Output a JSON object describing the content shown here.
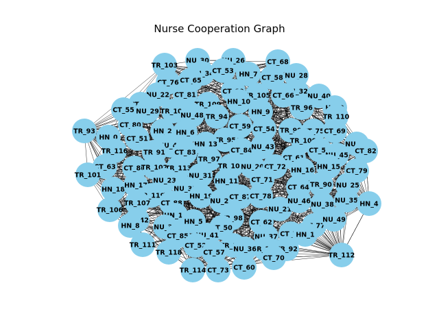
{
  "title": "Nurse Cooperation Graph",
  "colors": {
    "node": "#87ceeb",
    "edge": "#000000",
    "background": "#ffffff"
  },
  "graph": {
    "nodes": [
      "TR_103",
      "NU_30",
      "NU_26",
      "CT_68",
      "NU_34",
      "CT_53",
      "HN_7",
      "CT_58",
      "NU_28",
      "CT_76",
      "CT_65",
      "NU_32",
      "NU_40",
      "CT_89",
      "TR_105",
      "CT_66",
      "NU_22",
      "CT_81",
      "HN_10",
      "HN_3",
      "CT_67",
      "TR_109",
      "HN_9",
      "TR_96",
      "CT_55",
      "NU_29",
      "TR_108",
      "TR_110",
      "NU_48",
      "TR_94",
      "CT_80",
      "CT_59",
      "CT_54",
      "TR_99",
      "CT_75",
      "CT_69",
      "HN_2",
      "HN_6",
      "TR_93",
      "HN_0",
      "TR_95",
      "TR_100",
      "CT_51",
      "NU_44",
      "HN_13",
      "CT_84",
      "NU_43",
      "NU_47",
      "TR_116",
      "TR_91",
      "CT_83",
      "CT_61",
      "CT_56",
      "NU_45",
      "CT_82",
      "TR_97",
      "CT_63",
      "CT_86",
      "TR_102",
      "TR_113",
      "TR_104",
      "NU_20",
      "CT_72",
      "HN_16",
      "HN_15",
      "CT_79",
      "TR_101",
      "NU_31",
      "CT_71",
      "NU_23",
      "HN_11",
      "CT_64",
      "TR_90",
      "NU_25",
      "HN_18",
      "HN_17",
      "NU_33",
      "TR_119",
      "CT_88",
      "HN_19",
      "NU_27",
      "CT_87",
      "CT_78",
      "NU_21",
      "NU_46",
      "NU_38",
      "NU_35",
      "HN_4",
      "TR_107",
      "TR_106",
      "NU_42",
      "HN_14",
      "TR_98",
      "CT_62",
      "CT_77",
      "NU_49",
      "HN_8",
      "NU_39",
      "HN_5",
      "CT_50",
      "NU_37",
      "CT_74",
      "HN_1",
      "CT_85",
      "NU_41",
      "TR_111",
      "CT_52",
      "TR_115",
      "TR_117",
      "TR_92",
      "TR_118",
      "CT_57",
      "NU_36",
      "CT_70",
      "TR_112",
      "TR_114",
      "CT_73",
      "CT_60"
    ]
  }
}
